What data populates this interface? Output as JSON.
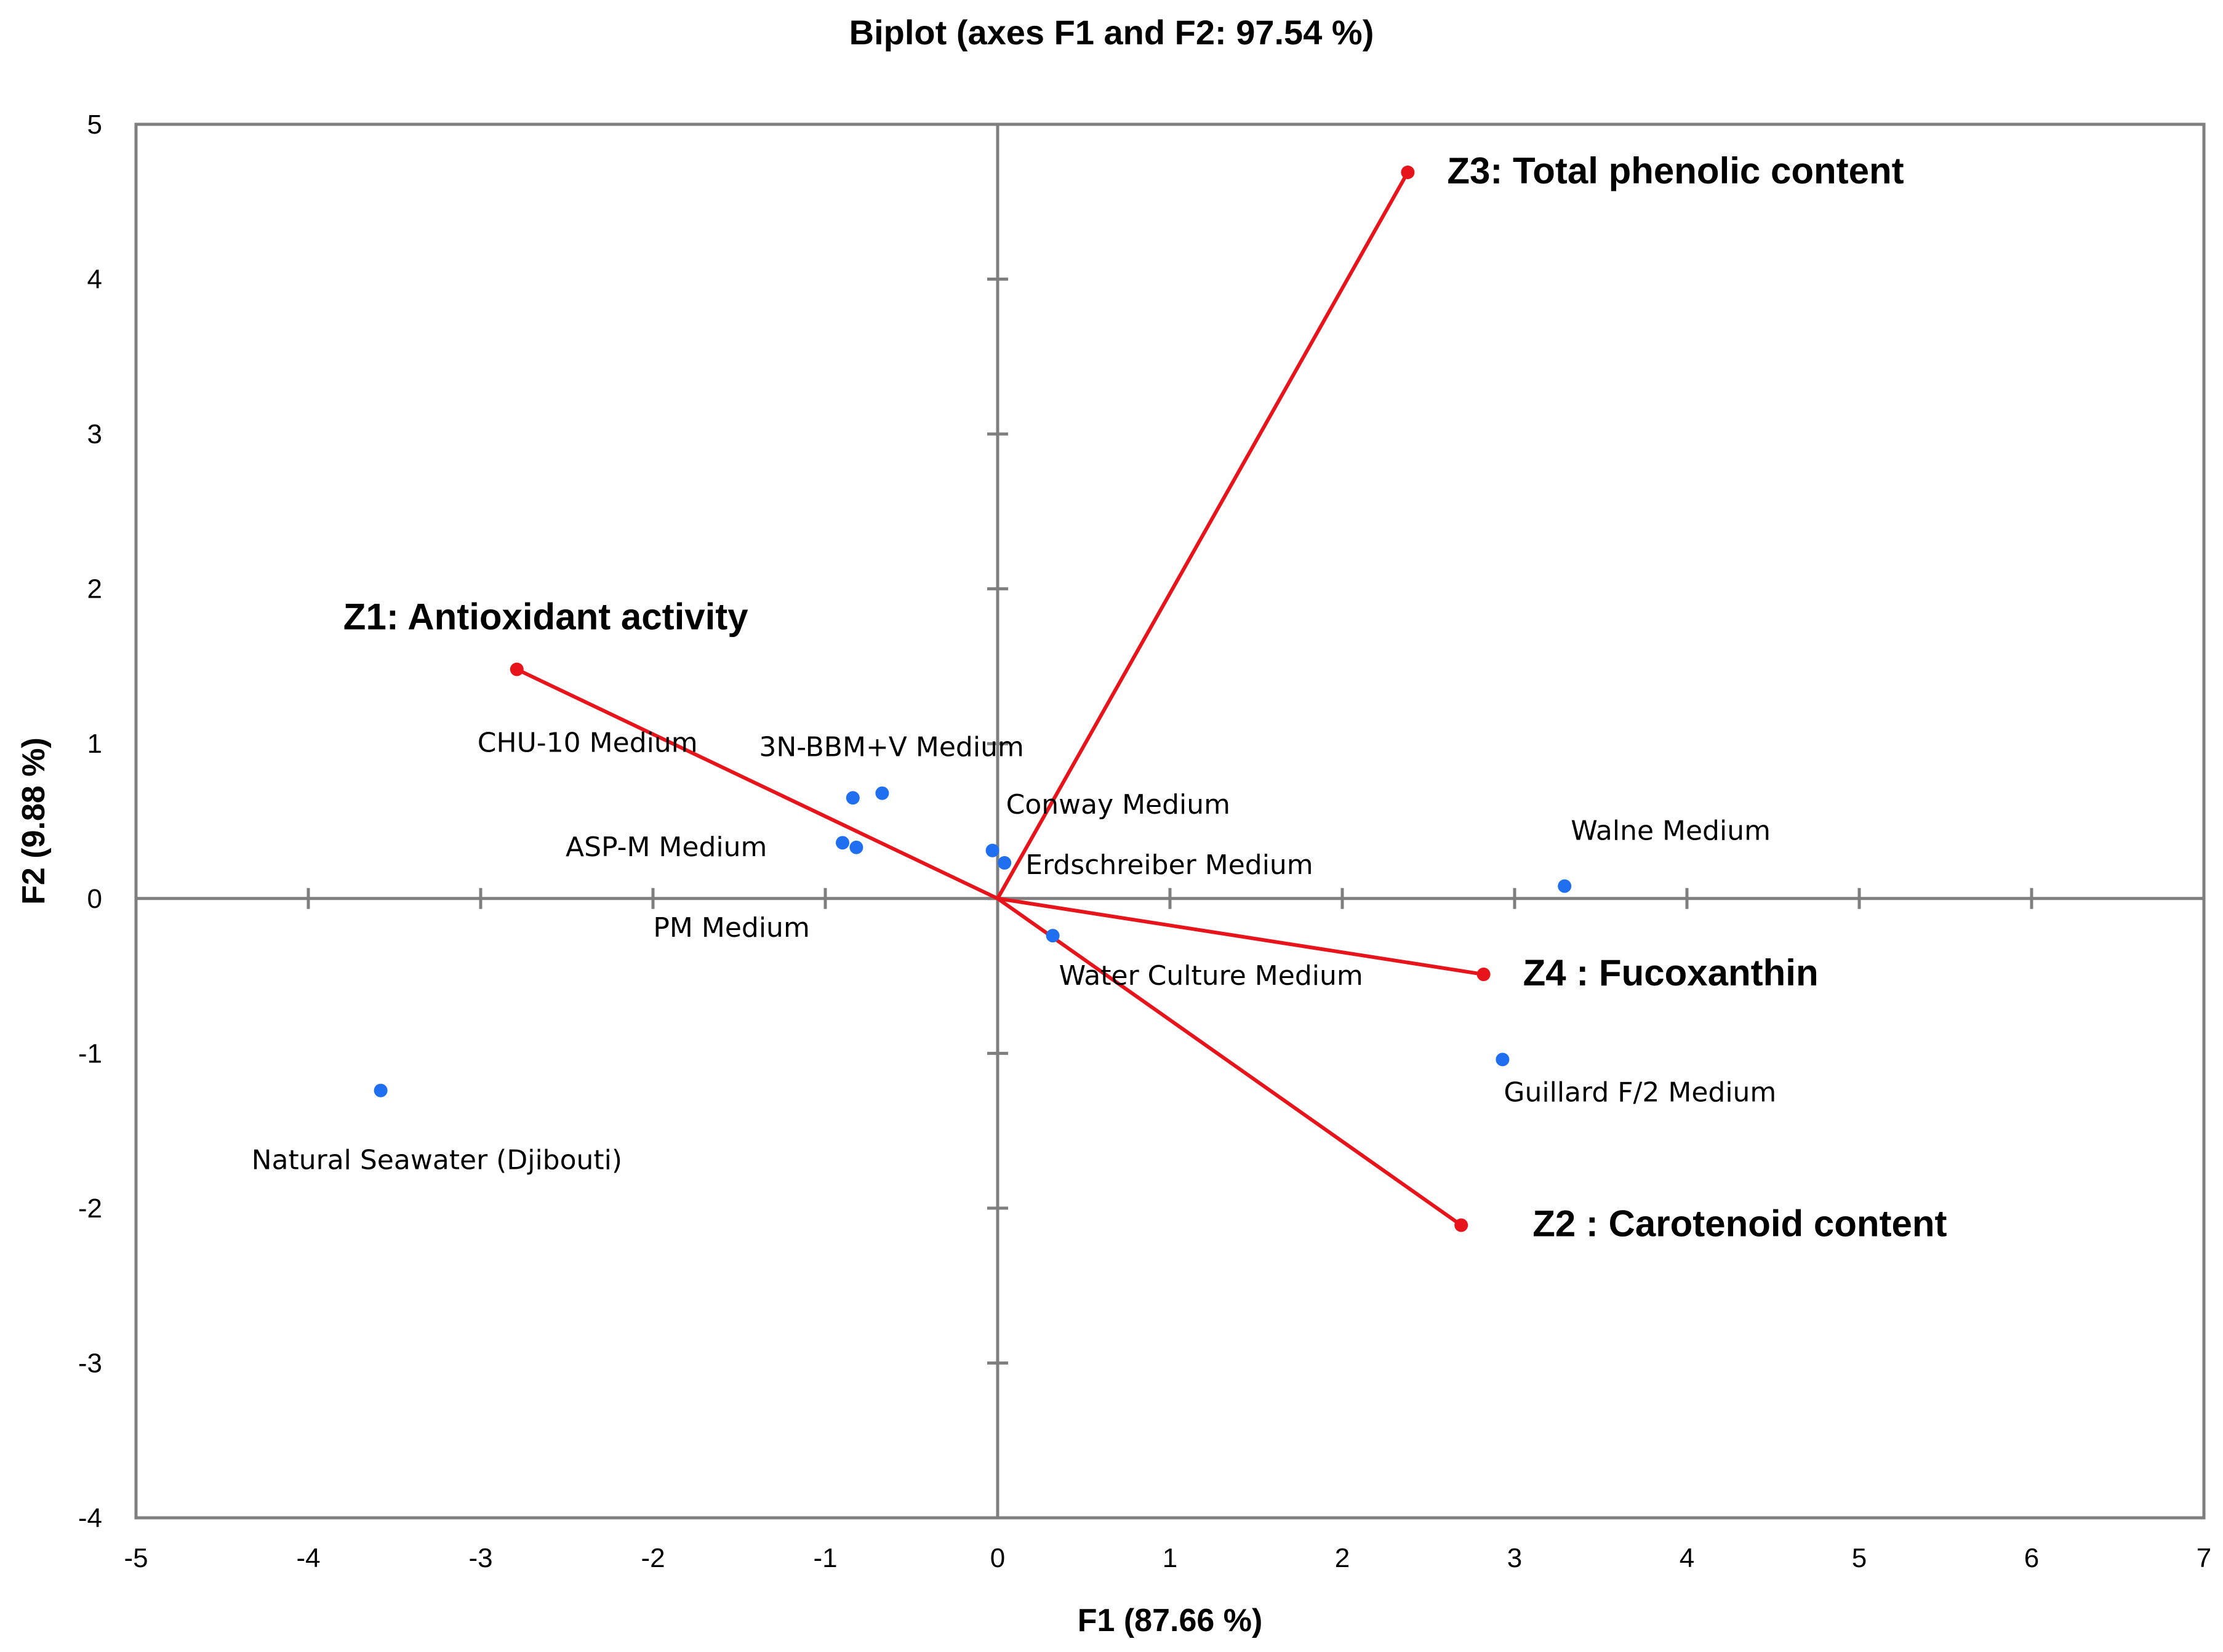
{
  "chart_data": {
    "type": "scatter",
    "subtype": "biplot",
    "title": "Biplot (axes F1 and F2: 97.54 %)",
    "xlabel": "F1 (87.66 %)",
    "ylabel": "F2 (9.88 %)",
    "xlim": [
      -5,
      7
    ],
    "ylim": [
      -4,
      5
    ],
    "xticks": [
      -5,
      -4,
      -3,
      -2,
      -1,
      0,
      1,
      2,
      3,
      4,
      5,
      6,
      7
    ],
    "yticks": [
      -4,
      -3,
      -2,
      -1,
      0,
      1,
      2,
      3,
      4,
      5
    ],
    "grid": false,
    "colors": {
      "observations": "#1f6ff0",
      "variables": "#e8141b",
      "axes": "#7f7f7f",
      "frame": "#7f7f7f"
    },
    "observations": [
      {
        "name": "Natural Seawater  (Djibouti)",
        "x": -3.58,
        "y": -1.24,
        "label_pos": "below"
      },
      {
        "name": "CHU-10 Medium",
        "x": -0.84,
        "y": 0.65,
        "label_pos": "upper-left"
      },
      {
        "name": "3N-BBM+V Medium",
        "x": -0.67,
        "y": 0.68,
        "label_pos": "above"
      },
      {
        "name": "ASP-M Medium",
        "x": -0.9,
        "y": 0.36,
        "label_pos": "left"
      },
      {
        "name": "PM Medium",
        "x": -0.82,
        "y": 0.33,
        "label_pos": "below-left"
      },
      {
        "name": "Conway Medium",
        "x": -0.03,
        "y": 0.31,
        "label_pos": "upper-right"
      },
      {
        "name": "Erdschreiber Medium",
        "x": 0.04,
        "y": 0.23,
        "label_pos": "right"
      },
      {
        "name": "Water  Culture Medium",
        "x": 0.32,
        "y": -0.24,
        "label_pos": "below-right"
      },
      {
        "name": "Walne  Medium",
        "x": 3.29,
        "y": 0.08,
        "label_pos": "above"
      },
      {
        "name": "Guillard F/2 Medium",
        "x": 2.93,
        "y": -1.04,
        "label_pos": "below"
      }
    ],
    "variables": [
      {
        "name": "Z1: Antioxidant  activity",
        "x": -2.79,
        "y": 1.48,
        "label_pos": "above"
      },
      {
        "name": "Z3: Total phenolic  content",
        "x": 2.38,
        "y": 4.69,
        "label_pos": "right"
      },
      {
        "name": "Z4 : Fucoxanthin",
        "x": 2.82,
        "y": -0.49,
        "label_pos": "right"
      },
      {
        "name": "Z2 : Carotenoid  content",
        "x": 2.69,
        "y": -2.11,
        "label_pos": "below-right"
      }
    ]
  }
}
